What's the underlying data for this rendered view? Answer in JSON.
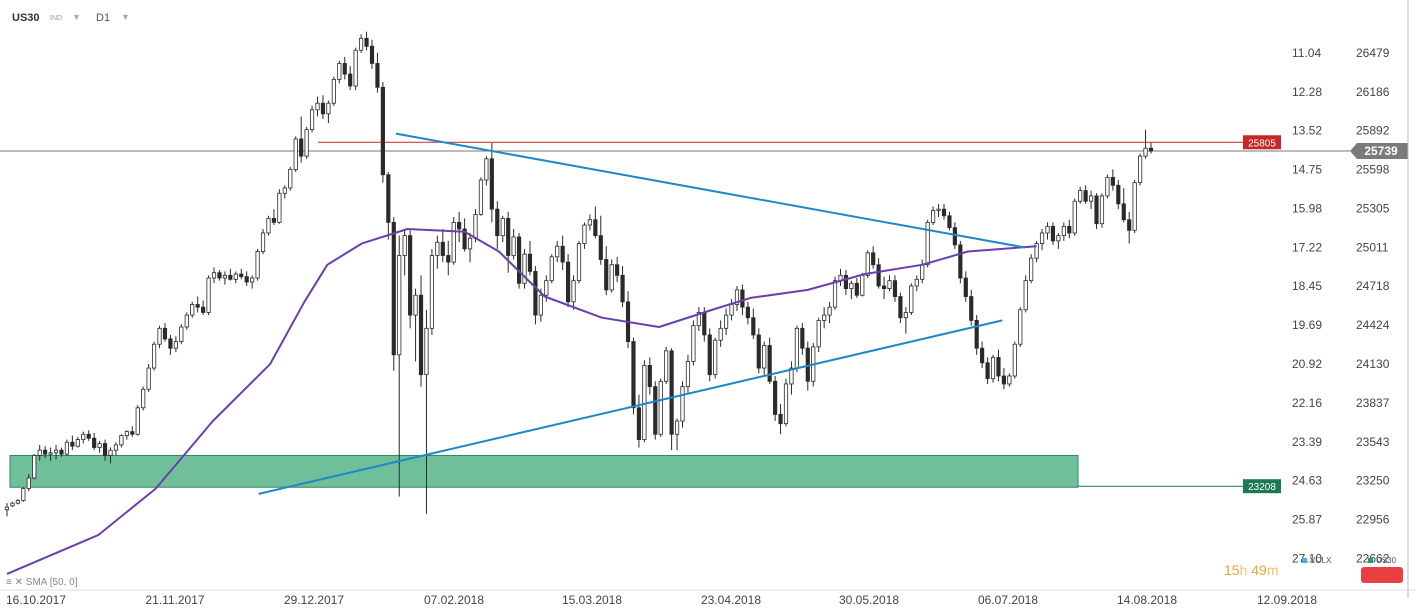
{
  "header": {
    "symbol": "US30",
    "badge": "IND",
    "timeframe": "D1"
  },
  "indicator_legend": "SMA [50, 0]",
  "timer": {
    "hours": "15",
    "h_unit": "h",
    "minutes": "49",
    "m_unit": "m"
  },
  "legends": [
    {
      "label": "VOLX",
      "color": "#3cb4e6"
    },
    {
      "label": "US30",
      "color": "#1f9e6e"
    }
  ],
  "colors": {
    "resistance": "#c62828",
    "support": "#1a7a52",
    "trend": "#1e88c8",
    "sma": "#6a3fb0",
    "zone": "#3fa97a",
    "candle": "#2a2a2a"
  },
  "chart_data": {
    "type": "candlestick",
    "x_ticks": [
      "16.10.2017",
      "21.11.2017",
      "29.12.2017",
      "07.02.2018",
      "15.03.2018",
      "23.04.2018",
      "30.05.2018",
      "06.07.2018",
      "14.08.2018",
      "12.09.2018"
    ],
    "y_ticks_price": [
      26479,
      26186,
      25892,
      25598,
      25305,
      25011,
      24718,
      24424,
      24130,
      23837,
      23543,
      23250,
      22956,
      22662
    ],
    "y_ticks_vol": [
      "11.04",
      "12.28",
      "13.52",
      "14.75",
      "15.98",
      "17.22",
      "18.45",
      "19.69",
      "20.92",
      "22.16",
      "23.39",
      "24.63",
      "25.87",
      "27.10"
    ],
    "ylim": [
      22400,
      26700
    ],
    "last_price": 25739,
    "resistance": 25805,
    "support": 23208,
    "support_zone": [
      23200,
      23440
    ],
    "upper_trendline": [
      [
        34,
        25870
      ],
      [
        89,
        25010
      ]
    ],
    "lower_trendline": [
      [
        22,
        23150
      ],
      [
        87,
        24460
      ]
    ],
    "sma": [
      [
        0,
        22546
      ],
      [
        8,
        22840
      ],
      [
        13,
        23190
      ],
      [
        18,
        23700
      ],
      [
        23,
        24130
      ],
      [
        26,
        24600
      ],
      [
        28,
        24880
      ],
      [
        31,
        25040
      ],
      [
        35,
        25150
      ],
      [
        40,
        25130
      ],
      [
        43,
        24980
      ],
      [
        47,
        24640
      ],
      [
        52,
        24480
      ],
      [
        57,
        24410
      ],
      [
        62,
        24550
      ],
      [
        65,
        24630
      ],
      [
        70,
        24690
      ],
      [
        75,
        24810
      ],
      [
        80,
        24880
      ],
      [
        84,
        24980
      ],
      [
        90,
        25020
      ]
    ],
    "candles": [
      [
        23030,
        23080,
        22980,
        23050
      ],
      [
        23060,
        23090,
        23050,
        23080
      ],
      [
        23080,
        23110,
        23070,
        23100
      ],
      [
        23100,
        23200,
        23090,
        23190
      ],
      [
        23190,
        23300,
        23170,
        23270
      ],
      [
        23270,
        23450,
        23260,
        23440
      ],
      [
        23440,
        23520,
        23400,
        23480
      ],
      [
        23480,
        23510,
        23420,
        23450
      ],
      [
        23450,
        23500,
        23400,
        23460
      ],
      [
        23460,
        23520,
        23410,
        23480
      ],
      [
        23480,
        23500,
        23430,
        23450
      ],
      [
        23450,
        23560,
        23440,
        23540
      ],
      [
        23540,
        23590,
        23480,
        23510
      ],
      [
        23510,
        23580,
        23500,
        23560
      ],
      [
        23560,
        23620,
        23530,
        23600
      ],
      [
        23600,
        23630,
        23550,
        23570
      ],
      [
        23570,
        23610,
        23480,
        23500
      ],
      [
        23500,
        23550,
        23460,
        23530
      ],
      [
        23530,
        23560,
        23400,
        23440
      ],
      [
        23440,
        23500,
        23380,
        23480
      ],
      [
        23480,
        23540,
        23440,
        23520
      ],
      [
        23520,
        23600,
        23500,
        23590
      ],
      [
        23590,
        23630,
        23560,
        23620
      ],
      [
        23620,
        23660,
        23580,
        23600
      ],
      [
        23600,
        23820,
        23590,
        23800
      ],
      [
        23800,
        23960,
        23780,
        23940
      ],
      [
        23940,
        24130,
        23920,
        24100
      ],
      [
        24100,
        24300,
        24080,
        24280
      ],
      [
        24280,
        24420,
        24250,
        24400
      ],
      [
        24400,
        24440,
        24300,
        24320
      ],
      [
        24320,
        24350,
        24200,
        24250
      ],
      [
        24250,
        24340,
        24220,
        24300
      ],
      [
        24300,
        24430,
        24280,
        24410
      ],
      [
        24410,
        24520,
        24390,
        24500
      ],
      [
        24500,
        24600,
        24480,
        24580
      ],
      [
        24580,
        24640,
        24520,
        24560
      ],
      [
        24560,
        24610,
        24500,
        24520
      ],
      [
        24520,
        24800,
        24500,
        24780
      ],
      [
        24780,
        24860,
        24740,
        24820
      ],
      [
        24820,
        24840,
        24760,
        24780
      ],
      [
        24780,
        24830,
        24730,
        24800
      ],
      [
        24800,
        24850,
        24760,
        24770
      ],
      [
        24770,
        24830,
        24740,
        24810
      ],
      [
        24810,
        24850,
        24770,
        24790
      ],
      [
        24790,
        24830,
        24720,
        24750
      ],
      [
        24750,
        24800,
        24700,
        24780
      ],
      [
        24780,
        25000,
        24760,
        24980
      ],
      [
        24980,
        25150,
        24960,
        25120
      ],
      [
        25120,
        25250,
        25100,
        25230
      ],
      [
        25230,
        25300,
        25180,
        25200
      ],
      [
        25200,
        25450,
        25190,
        25420
      ],
      [
        25420,
        25480,
        25380,
        25460
      ],
      [
        25460,
        25620,
        25440,
        25600
      ],
      [
        25600,
        25850,
        25580,
        25830
      ],
      [
        25830,
        26000,
        25650,
        25700
      ],
      [
        25700,
        25920,
        25680,
        25900
      ],
      [
        25900,
        26080,
        25880,
        26050
      ],
      [
        26050,
        26150,
        26000,
        26100
      ],
      [
        26100,
        26160,
        25980,
        26020
      ],
      [
        26020,
        26120,
        25950,
        26100
      ],
      [
        26100,
        26300,
        26080,
        26280
      ],
      [
        26280,
        26420,
        26250,
        26400
      ],
      [
        26400,
        26450,
        26280,
        26320
      ],
      [
        26320,
        26380,
        26200,
        26230
      ],
      [
        26230,
        26520,
        26200,
        26500
      ],
      [
        26500,
        26620,
        26480,
        26590
      ],
      [
        26590,
        26640,
        26500,
        26530
      ],
      [
        26530,
        26580,
        26360,
        26400
      ],
      [
        26400,
        26480,
        26180,
        26220
      ],
      [
        26220,
        26260,
        25500,
        25560
      ],
      [
        25560,
        25580,
        25070,
        25200
      ],
      [
        25200,
        25240,
        24080,
        24200
      ],
      [
        24200,
        25100,
        23130,
        24950
      ],
      [
        24950,
        25150,
        24800,
        25100
      ],
      [
        25100,
        25140,
        24400,
        24500
      ],
      [
        24500,
        24700,
        24150,
        24650
      ],
      [
        24650,
        24800,
        23960,
        24050
      ],
      [
        24050,
        24540,
        23000,
        24400
      ],
      [
        24400,
        25000,
        24350,
        24950
      ],
      [
        24950,
        25100,
        24850,
        25050
      ],
      [
        25050,
        25150,
        24900,
        24950
      ],
      [
        24950,
        25060,
        24800,
        24900
      ],
      [
        24900,
        25240,
        24880,
        25200
      ],
      [
        25200,
        25280,
        25050,
        25150
      ],
      [
        25150,
        25230,
        24980,
        25000
      ],
      [
        25000,
        25120,
        24900,
        25080
      ],
      [
        25080,
        25300,
        25050,
        25260
      ],
      [
        25260,
        25540,
        25250,
        25520
      ],
      [
        25520,
        25700,
        25480,
        25680
      ],
      [
        25680,
        25800,
        25200,
        25300
      ],
      [
        25300,
        25360,
        25000,
        25100
      ],
      [
        25100,
        25250,
        25050,
        25230
      ],
      [
        25230,
        25280,
        24820,
        24950
      ],
      [
        24950,
        25150,
        24920,
        25090
      ]
    ],
    "candles_b": [
      [
        25090,
        25120,
        24700,
        24740
      ],
      [
        24740,
        25000,
        24700,
        24960
      ],
      [
        24960,
        25060,
        24800,
        24830
      ],
      [
        24830,
        24870,
        24430,
        24500
      ],
      [
        24500,
        24700,
        24450,
        24650
      ],
      [
        24650,
        24800,
        24600,
        24760
      ],
      [
        24760,
        24960,
        24740,
        24940
      ],
      [
        24940,
        25060,
        24900,
        25020
      ],
      [
        25020,
        25100,
        24840,
        24900
      ],
      [
        24900,
        24960,
        24560,
        24600
      ],
      [
        24600,
        24800,
        24540,
        24760
      ],
      [
        24760,
        25060,
        24740,
        25040
      ],
      [
        25040,
        25200,
        25000,
        25180
      ],
      [
        25180,
        25260,
        25140,
        25220
      ],
      [
        25220,
        25320,
        25080,
        25100
      ],
      [
        25100,
        25250,
        24880,
        24920
      ],
      [
        24920,
        25020,
        24650,
        24690
      ],
      [
        24690,
        24920,
        24670,
        24880
      ],
      [
        24880,
        24940,
        24750,
        24800
      ],
      [
        24800,
        24870,
        24560,
        24600
      ],
      [
        24600,
        24680,
        24250,
        24300
      ],
      [
        24300,
        24330,
        23750,
        23800
      ],
      [
        23800,
        23900,
        23500,
        23560
      ],
      [
        23560,
        24160,
        23540,
        24120
      ],
      [
        24120,
        24180,
        23900,
        23960
      ],
      [
        23960,
        24000,
        23560,
        23600
      ],
      [
        23600,
        24020,
        23580,
        24000
      ],
      [
        24000,
        24260,
        23980,
        24230
      ],
      [
        24230,
        24250,
        23480,
        23600
      ],
      [
        23600,
        23720,
        23480,
        23700
      ],
      [
        23700,
        24000,
        23650,
        23960
      ],
      [
        23960,
        24200,
        23900,
        24150
      ],
      [
        24150,
        24460,
        24120,
        24420
      ],
      [
        24420,
        24560,
        24380,
        24520
      ],
      [
        24520,
        24560,
        24300,
        24350
      ],
      [
        24350,
        24400,
        24000,
        24050
      ],
      [
        24050,
        24330,
        24020,
        24310
      ],
      [
        24310,
        24460,
        24260,
        24400
      ],
      [
        24400,
        24550,
        24350,
        24500
      ],
      [
        24500,
        24620,
        24460,
        24580
      ],
      [
        24580,
        24720,
        24530,
        24690
      ],
      [
        24690,
        24730,
        24500,
        24560
      ],
      [
        24560,
        24600,
        24430,
        24480
      ],
      [
        24480,
        24550,
        24320,
        24350
      ],
      [
        24350,
        24400,
        24060,
        24100
      ],
      [
        24100,
        24300,
        24050,
        24270
      ],
      [
        24270,
        24330,
        23980,
        24000
      ],
      [
        24000,
        24040,
        23700,
        23750
      ],
      [
        23750,
        23830,
        23600,
        23680
      ],
      [
        23680,
        24020,
        23660,
        23980
      ],
      [
        23980,
        24150,
        23900,
        24100
      ],
      [
        24100,
        24420,
        24070,
        24400
      ],
      [
        24400,
        24440,
        24200,
        24250
      ],
      [
        24250,
        24300,
        23930,
        24000
      ],
      [
        24000,
        24290,
        23960,
        24260
      ],
      [
        24260,
        24480,
        24220,
        24460
      ],
      [
        24460,
        24560,
        24400,
        24500
      ],
      [
        24500,
        24600,
        24440,
        24560
      ],
      [
        24560,
        24790,
        24540,
        24760
      ],
      [
        24760,
        24850,
        24720,
        24800
      ],
      [
        24800,
        24840,
        24650,
        24700
      ],
      [
        24700,
        24760,
        24620,
        24740
      ],
      [
        24740,
        24780,
        24630,
        24650
      ],
      [
        24650,
        24820,
        24640,
        24800
      ],
      [
        24800,
        24990,
        24780,
        24970
      ],
      [
        24970,
        25020,
        24850,
        24880
      ],
      [
        24880,
        24930,
        24700,
        24720
      ],
      [
        24720,
        24790,
        24620,
        24700
      ],
      [
        24700,
        24800,
        24680,
        24760
      ],
      [
        24760,
        24800,
        24600,
        24640
      ],
      [
        24640,
        24670,
        24440,
        24480
      ],
      [
        24480,
        24560,
        24360,
        24520
      ],
      [
        24520,
        24740,
        24500,
        24720
      ],
      [
        24720,
        24800,
        24680,
        24770
      ],
      [
        24770,
        24920,
        24740,
        24880
      ],
      [
        24880,
        25220,
        24860,
        25200
      ],
      [
        25200,
        25320,
        25180,
        25290
      ],
      [
        25290,
        25340,
        25240,
        25300
      ],
      [
        25300,
        25340,
        25220,
        25250
      ],
      [
        25250,
        25280,
        25140,
        25160
      ],
      [
        25160,
        25200,
        25000,
        25030
      ],
      [
        25030,
        25060,
        24740,
        24780
      ],
      [
        24780,
        24830,
        24600,
        24640
      ],
      [
        24640,
        24690,
        24420,
        24460
      ],
      [
        24460,
        24500,
        24200,
        24250
      ],
      [
        24250,
        24300,
        24100,
        24140
      ],
      [
        24140,
        24180,
        23980,
        24020
      ],
      [
        24020,
        24200,
        23990,
        24180
      ],
      [
        24180,
        24240,
        24000,
        24040
      ],
      [
        24040,
        24100,
        23940,
        23980
      ],
      [
        23980,
        24060,
        23960,
        24040
      ],
      [
        24040,
        24300,
        24020,
        24280
      ],
      [
        24280,
        24560,
        24260,
        24540
      ],
      [
        24540,
        24800,
        24520,
        24760
      ],
      [
        24760,
        24960,
        24740,
        24930
      ],
      [
        24930,
        25060,
        24900,
        25040
      ],
      [
        25040,
        25150,
        24990,
        25120
      ],
      [
        25120,
        25200,
        25070,
        25170
      ],
      [
        25170,
        25200,
        25030,
        25060
      ],
      [
        25060,
        25120,
        25000,
        25100
      ],
      [
        25100,
        25200,
        25060,
        25170
      ],
      [
        25170,
        25220,
        25080,
        25120
      ],
      [
        25120,
        25380,
        25100,
        25360
      ],
      [
        25360,
        25470,
        25340,
        25440
      ],
      [
        25440,
        25480,
        25340,
        25360
      ],
      [
        25360,
        25440,
        25300,
        25400
      ],
      [
        25400,
        25420,
        25150,
        25190
      ],
      [
        25190,
        25420,
        25160,
        25400
      ],
      [
        25400,
        25560,
        25380,
        25540
      ],
      [
        25540,
        25600,
        25440,
        25480
      ],
      [
        25480,
        25520,
        25300,
        25340
      ],
      [
        25340,
        25460,
        25200,
        25220
      ],
      [
        25220,
        25280,
        25040,
        25140
      ],
      [
        25140,
        25520,
        25120,
        25500
      ],
      [
        25500,
        25720,
        25480,
        25700
      ],
      [
        25700,
        25900,
        25680,
        25760
      ],
      [
        25760,
        25800,
        25720,
        25739
      ]
    ]
  }
}
